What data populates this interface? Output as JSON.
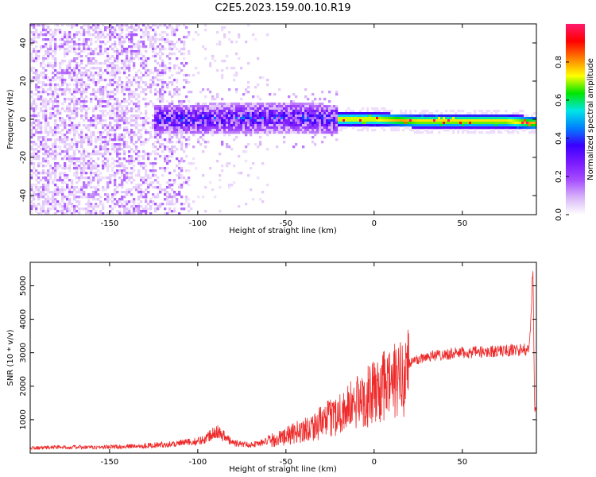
{
  "title": "C2E5.2023.159.00.10.R19",
  "colors": {
    "snr_line": "#ee2a2a",
    "colormap": [
      "#ffffff",
      "#d8b4f8",
      "#a64dff",
      "#7a1aff",
      "#3a00ff",
      "#0080ff",
      "#00e6e6",
      "#00e600",
      "#ffff00",
      "#ff8000",
      "#ff0000",
      "#ff1a6e"
    ]
  },
  "chart_data": [
    {
      "type": "heatmap",
      "name": "spectrogram",
      "xlabel": "Height of straight line (km)",
      "ylabel": "Frequency (Hz)",
      "xlim": [
        -195,
        92
      ],
      "ylim": [
        -50,
        50
      ],
      "xticks": [
        -150,
        -100,
        -50,
        0,
        50
      ],
      "yticks": [
        -40,
        -20,
        0,
        20,
        40
      ],
      "ridge": {
        "description_points": [
          [
            -125,
            0
          ],
          [
            -100,
            0
          ],
          [
            -50,
            1
          ],
          [
            -25,
            0
          ],
          [
            0,
            0
          ],
          [
            25,
            -1
          ],
          [
            50,
            -1
          ],
          [
            75,
            -1
          ],
          [
            90,
            -2
          ]
        ],
        "peak_region_x": [
          -20,
          90
        ]
      },
      "noise_region_x": [
        -195,
        -105
      ],
      "colorbar": {
        "label": "Normalized spectral amplitude",
        "range": [
          0.0,
          1.0
        ],
        "ticks": [
          0.0,
          0.2,
          0.4,
          0.6,
          0.8
        ]
      }
    },
    {
      "type": "line",
      "name": "snr",
      "xlabel": "Height of straight line (km)",
      "ylabel": "SNR (10 * v/v)",
      "xlim": [
        -195,
        92
      ],
      "ylim": [
        0,
        5700
      ],
      "xticks": [
        -150,
        -100,
        -50,
        0,
        50
      ],
      "yticks": [
        1000,
        2000,
        3000,
        4000,
        5000
      ],
      "series": [
        {
          "x": [
            -195,
            -180,
            -160,
            -140,
            -120,
            -110,
            -100,
            -95,
            -90,
            -85,
            -80,
            -70,
            -60,
            -50,
            -40,
            -30,
            -20,
            -10,
            0,
            10,
            15,
            20,
            25,
            30,
            40,
            50,
            60,
            70,
            80,
            88,
            90,
            91
          ],
          "values": [
            150,
            180,
            170,
            200,
            250,
            300,
            350,
            450,
            700,
            500,
            300,
            250,
            350,
            500,
            700,
            900,
            1200,
            1500,
            1800,
            2100,
            2200,
            2700,
            2800,
            2900,
            2950,
            3000,
            3020,
            3050,
            3080,
            3100,
            5600,
            1300
          ]
        }
      ]
    }
  ]
}
